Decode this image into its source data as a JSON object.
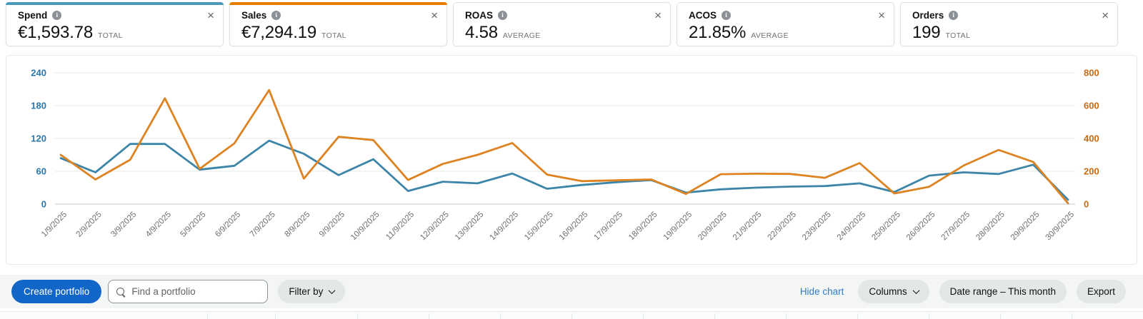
{
  "metric_cards": [
    {
      "label": "Spend",
      "value": "€1,593.78",
      "qualifier": "TOTAL",
      "selected": true,
      "accent_color": "#4b99bc"
    },
    {
      "label": "Sales",
      "value": "€7,294.19",
      "qualifier": "TOTAL",
      "selected": true,
      "accent_color": "#e67d00"
    },
    {
      "label": "ROAS",
      "value": "4.58",
      "qualifier": "AVERAGE",
      "selected": false,
      "accent_color": null
    },
    {
      "label": "ACOS",
      "value": "21.85%",
      "qualifier": "AVERAGE",
      "selected": false,
      "accent_color": null
    },
    {
      "label": "Orders",
      "value": "199",
      "qualifier": "TOTAL",
      "selected": false,
      "accent_color": null
    }
  ],
  "icons": {
    "info": "i",
    "close": "×"
  },
  "chart_data": {
    "type": "line",
    "x": [
      "1/9/2025",
      "2/9/2025",
      "3/9/2025",
      "4/9/2025",
      "5/9/2025",
      "6/9/2025",
      "7/9/2025",
      "8/9/2025",
      "9/9/2025",
      "10/9/2025",
      "11/9/2025",
      "12/9/2025",
      "13/9/2025",
      "14/9/2025",
      "15/9/2025",
      "16/9/2025",
      "17/9/2025",
      "18/9/2025",
      "19/9/2025",
      "20/9/2025",
      "21/9/2025",
      "22/9/2025",
      "23/9/2025",
      "24/9/2025",
      "25/9/2025",
      "26/9/2025",
      "27/9/2025",
      "28/9/2025",
      "29/9/2025",
      "30/9/2025"
    ],
    "series": [
      {
        "name": "Spend",
        "axis": "left",
        "color": "#3d85a8",
        "values": [
          84,
          58,
          110,
          110,
          63,
          70,
          116,
          92,
          53,
          82,
          24,
          41,
          38,
          56,
          28,
          35,
          40,
          44,
          21,
          27,
          30,
          32,
          33,
          38,
          22,
          52,
          58,
          55,
          72,
          8
        ]
      },
      {
        "name": "Sales",
        "axis": "right",
        "color": "#dd8321",
        "values": [
          300,
          150,
          270,
          645,
          215,
          370,
          695,
          155,
          410,
          390,
          147,
          245,
          300,
          372,
          180,
          140,
          145,
          150,
          62,
          182,
          185,
          184,
          160,
          250,
          65,
          105,
          235,
          330,
          257,
          5
        ]
      }
    ],
    "left_axis": {
      "ticks": [
        0,
        60,
        120,
        180,
        240
      ],
      "range": [
        0,
        240
      ],
      "color": "#2878ae"
    },
    "right_axis": {
      "ticks": [
        0,
        200,
        400,
        600,
        800
      ],
      "range": [
        0,
        800
      ],
      "color": "#c96a10"
    },
    "grid": true,
    "legend_position": "none",
    "title": ""
  },
  "toolbar": {
    "create_button": "Create portfolio",
    "search_placeholder": "Find a portfolio",
    "filter_button": "Filter by",
    "hide_chart_link": "Hide chart",
    "columns_button": "Columns",
    "date_range_button": "Date range – This month",
    "export_button": "Export"
  },
  "colors": {
    "primary_button": "#1266c8",
    "link": "#2e7ec9",
    "grid_line": "#eef0f0",
    "zero_line": "#d8dbdb",
    "date_label": "#6b7070"
  }
}
